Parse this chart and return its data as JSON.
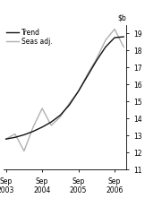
{
  "trend_x": [
    0,
    1,
    2,
    3,
    4,
    5,
    6,
    7,
    8,
    9,
    10,
    11,
    12,
    13
  ],
  "trend_y": [
    12.8,
    12.9,
    13.05,
    13.25,
    13.5,
    13.8,
    14.2,
    14.8,
    15.6,
    16.5,
    17.4,
    18.2,
    18.75,
    18.8
  ],
  "seas_x": [
    0,
    1,
    2,
    3,
    4,
    5,
    6,
    7,
    8,
    9,
    10,
    11,
    12,
    13
  ],
  "seas_y": [
    12.8,
    13.1,
    12.1,
    13.5,
    14.6,
    13.6,
    14.1,
    14.9,
    15.6,
    16.6,
    17.5,
    18.6,
    19.25,
    18.2
  ],
  "trend_color": "#111111",
  "seas_color": "#b0b0b0",
  "ylim": [
    11,
    19.5
  ],
  "yticks": [
    11,
    12,
    13,
    14,
    15,
    16,
    17,
    18,
    19
  ],
  "xlim": [
    -0.3,
    13.3
  ],
  "xtick_positions": [
    0,
    4,
    8,
    12
  ],
  "xtick_labels": [
    "Sep\n2003",
    "Sep\n2004",
    "Sep\n2005",
    "Sep\n2006"
  ],
  "legend_trend": "Trend",
  "legend_seas": "Seas adj.",
  "trend_linewidth": 1.0,
  "seas_linewidth": 1.0,
  "tick_fontsize": 5.5,
  "legend_fontsize": 5.5
}
